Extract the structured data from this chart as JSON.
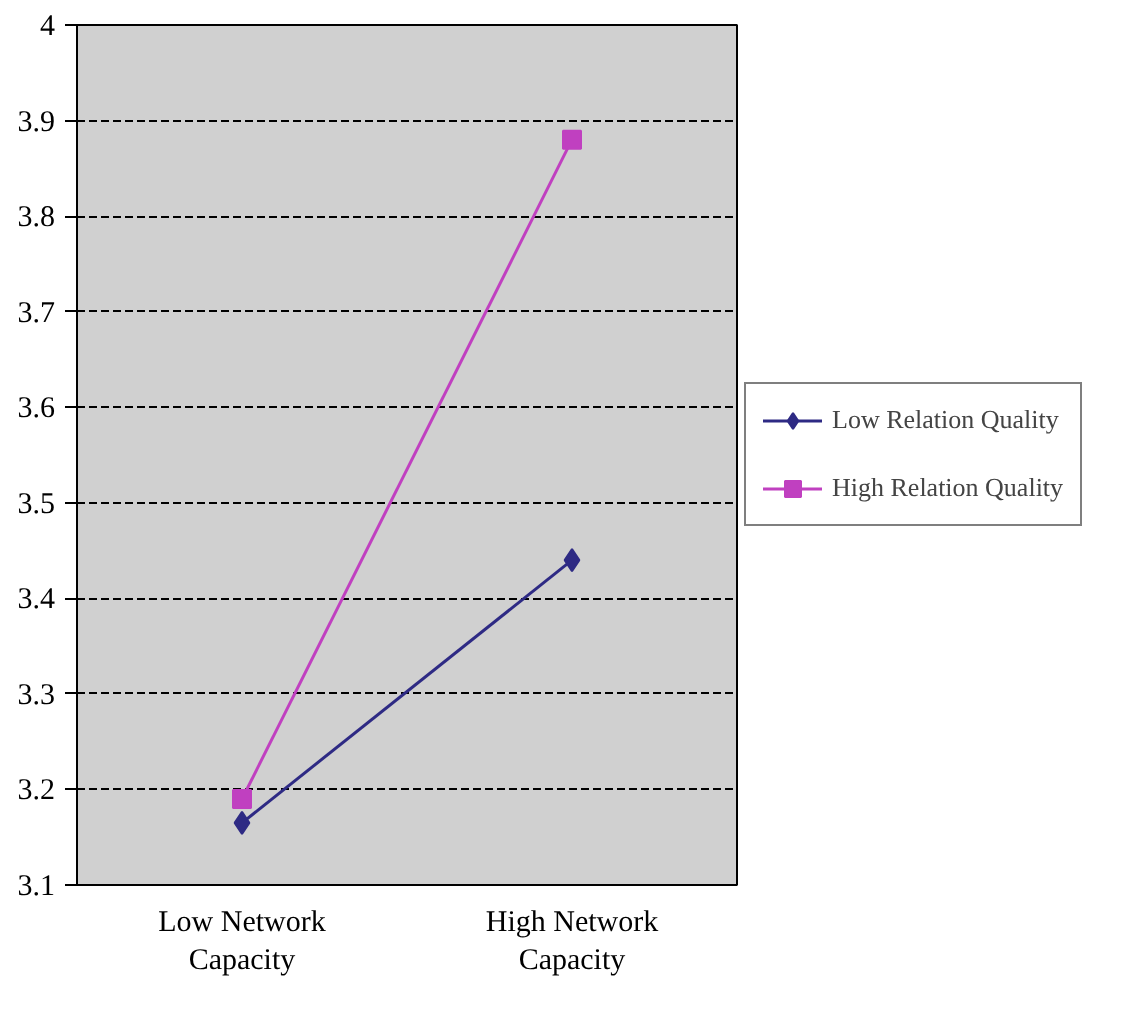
{
  "chart_data": {
    "type": "line",
    "categories": [
      "Low Network Capacity",
      "High Network Capacity"
    ],
    "series": [
      {
        "name": "Low Relation Quality",
        "color": "#2e2a84",
        "marker": "diamond",
        "values": [
          3.165,
          3.44
        ]
      },
      {
        "name": "High Relation Quality",
        "color": "#c040c0",
        "marker": "square",
        "values": [
          3.19,
          3.88
        ]
      }
    ],
    "ylim": [
      3.1,
      4
    ],
    "yticks": [
      3.1,
      3.2,
      3.3,
      3.4,
      3.5,
      3.6,
      3.7,
      3.8,
      3.9,
      4
    ],
    "grid": "y",
    "legend": "right",
    "line_style": "solid"
  }
}
